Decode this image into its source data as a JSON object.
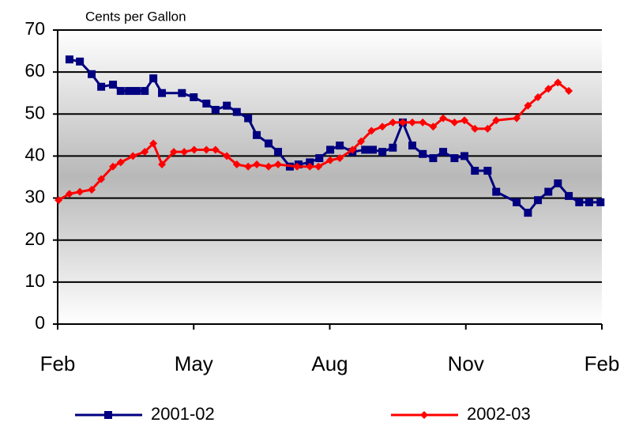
{
  "chart_data": {
    "type": "line",
    "y_label": "Cents per Gallon",
    "xlim": [
      0,
      12
    ],
    "xticks": [
      {
        "value": 0,
        "label": "Feb"
      },
      {
        "value": 3,
        "label": "May"
      },
      {
        "value": 6,
        "label": "Aug"
      },
      {
        "value": 9,
        "label": "Nov"
      },
      {
        "value": 12,
        "label": "Feb"
      }
    ],
    "ylim": [
      0,
      70
    ],
    "yticks": [
      0,
      10,
      20,
      30,
      40,
      50,
      60,
      70
    ],
    "grid": true,
    "series": [
      {
        "name": "2001-02",
        "color": "#000080",
        "x": [
          0.26,
          0.49,
          0.75,
          0.96,
          1.22,
          1.39,
          1.57,
          1.74,
          1.92,
          2.11,
          2.3,
          2.74,
          3.0,
          3.28,
          3.48,
          3.73,
          3.95,
          4.2,
          4.39,
          4.65,
          4.86,
          5.12,
          5.31,
          5.56,
          5.77,
          6.01,
          6.22,
          6.5,
          6.78,
          6.95,
          7.16,
          7.39,
          7.61,
          7.82,
          8.05,
          8.28,
          8.5,
          8.75,
          8.97,
          9.2,
          9.48,
          9.67,
          10.12,
          10.37,
          10.59,
          10.82,
          11.03,
          11.27,
          11.5,
          11.72,
          11.97
        ],
        "values": [
          63,
          62.5,
          59.5,
          56.5,
          57,
          55.5,
          55.5,
          55.5,
          55.5,
          58.5,
          55,
          55,
          54,
          52.5,
          51,
          52,
          50.5,
          49,
          45,
          43,
          41,
          37.5,
          38,
          38.5,
          39.5,
          41.5,
          42.5,
          41,
          41.5,
          41.5,
          41,
          42,
          48,
          42.5,
          40.5,
          39.5,
          41,
          39.5,
          40,
          36.5,
          36.5,
          31.5,
          29,
          26.5,
          29.5,
          31.5,
          33.5,
          30.5,
          29,
          29,
          29
        ]
      },
      {
        "name": "2002-03",
        "color": "#ff0000",
        "x": [
          0.02,
          0.26,
          0.49,
          0.75,
          0.96,
          1.22,
          1.39,
          1.66,
          1.92,
          2.11,
          2.3,
          2.56,
          2.79,
          3.01,
          3.28,
          3.48,
          3.73,
          3.95,
          4.2,
          4.39,
          4.65,
          4.86,
          5.28,
          5.56,
          5.75,
          6.01,
          6.22,
          6.5,
          6.69,
          6.92,
          7.16,
          7.39,
          7.61,
          7.82,
          8.05,
          8.28,
          8.5,
          8.75,
          8.97,
          9.2,
          9.48,
          9.67,
          10.12,
          10.37,
          10.59,
          10.82,
          11.03,
          11.27
        ],
        "values": [
          29.5,
          31,
          31.5,
          32,
          34.5,
          37.5,
          38.5,
          40,
          41,
          43,
          38,
          41,
          41,
          41.5,
          41.5,
          41.5,
          40,
          38,
          37.5,
          38,
          37.5,
          38,
          37.5,
          37.5,
          37.5,
          39,
          39.5,
          41.5,
          43.5,
          46,
          47,
          48,
          48,
          48,
          48,
          47,
          49,
          48,
          48.5,
          46.5,
          46.5,
          48.5,
          49,
          52,
          54,
          56,
          57.5,
          55.5
        ]
      }
    ]
  }
}
